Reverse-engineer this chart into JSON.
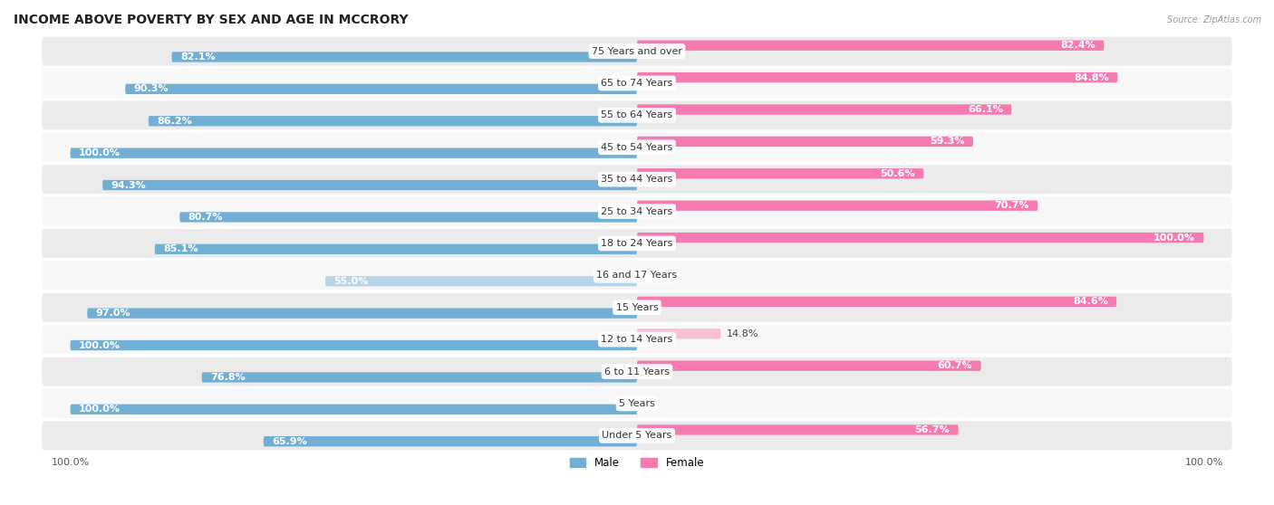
{
  "title": "INCOME ABOVE POVERTY BY SEX AND AGE IN MCCRORY",
  "source": "Source: ZipAtlas.com",
  "categories": [
    "Under 5 Years",
    "5 Years",
    "6 to 11 Years",
    "12 to 14 Years",
    "15 Years",
    "16 and 17 Years",
    "18 to 24 Years",
    "25 to 34 Years",
    "35 to 44 Years",
    "45 to 54 Years",
    "55 to 64 Years",
    "65 to 74 Years",
    "75 Years and over"
  ],
  "male": [
    65.9,
    100.0,
    76.8,
    100.0,
    97.0,
    55.0,
    85.1,
    80.7,
    94.3,
    100.0,
    86.2,
    90.3,
    82.1
  ],
  "female": [
    56.7,
    0.0,
    60.7,
    14.8,
    84.6,
    0.0,
    100.0,
    70.7,
    50.6,
    59.3,
    66.1,
    84.8,
    82.4
  ],
  "male_color": "#72afd3",
  "female_color": "#f47ab0",
  "male_color_light": "#b8d4e8",
  "female_color_light": "#f9c0d8",
  "row_color_odd": "#ebebeb",
  "row_color_even": "#f7f7f7",
  "title_fontsize": 10,
  "label_fontsize": 8,
  "cat_fontsize": 8,
  "tick_fontsize": 8
}
